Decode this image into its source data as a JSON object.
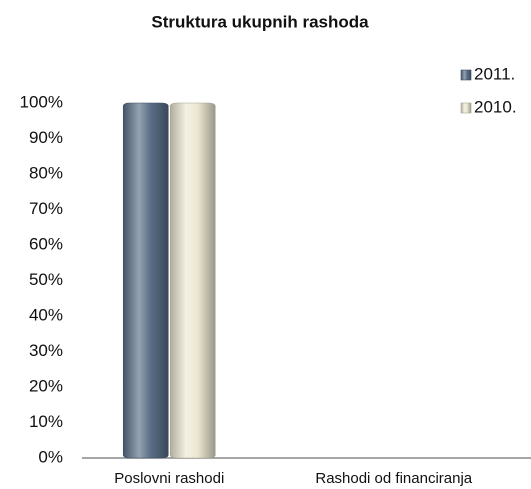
{
  "chart_data": {
    "type": "bar",
    "title": "Struktura ukupnih rashoda",
    "categories": [
      "Poslovni rashodi",
      "Rashodi od financiranja"
    ],
    "series": [
      {
        "name": "2011.",
        "color": "#5a7088",
        "values": [
          100,
          0
        ]
      },
      {
        "name": "2010.",
        "color": "#ece8d2",
        "values": [
          100,
          0
        ]
      }
    ],
    "ylim": [
      0,
      100
    ],
    "yticks": [
      {
        "value": 0,
        "label": "0%"
      },
      {
        "value": 10,
        "label": "10%"
      },
      {
        "value": 20,
        "label": "20%"
      },
      {
        "value": 30,
        "label": "30%"
      },
      {
        "value": 40,
        "label": "40%"
      },
      {
        "value": 50,
        "label": "50%"
      },
      {
        "value": 60,
        "label": "60%"
      },
      {
        "value": 70,
        "label": "70%"
      },
      {
        "value": 80,
        "label": "80%"
      },
      {
        "value": 90,
        "label": "90%"
      },
      {
        "value": 100,
        "label": "100%"
      }
    ],
    "grid": false,
    "legend": "top-right"
  }
}
